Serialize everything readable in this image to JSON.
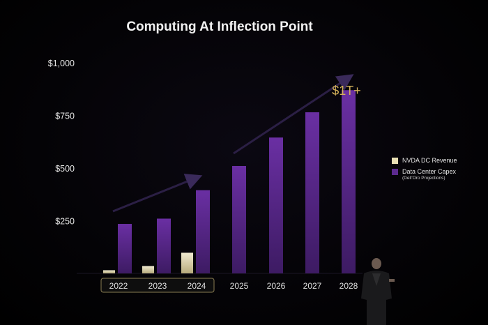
{
  "chart_data": {
    "type": "bar",
    "title": "Computing At Inflection Point",
    "categories": [
      "2022",
      "2023",
      "2024",
      "2025",
      "2026",
      "2027",
      "2028"
    ],
    "highlighted_categories": [
      "2022",
      "2023",
      "2024"
    ],
    "series": [
      {
        "name": "NVDA DC Revenue",
        "color": "#e8dfb4",
        "values": [
          15,
          35,
          98,
          null,
          null,
          null,
          null
        ]
      },
      {
        "name": "Data Center Capex",
        "color": "#5c2a8e",
        "values": [
          235,
          260,
          395,
          510,
          645,
          765,
          870
        ]
      }
    ],
    "legend_note": "(Dell'Oro Projections)",
    "yticks": [
      "$1,000",
      "$750",
      "$500",
      "$250"
    ],
    "ytick_values": [
      1000,
      750,
      500,
      250
    ],
    "ylim": [
      0,
      1000
    ],
    "annotation": "$1T+",
    "annotation_color": "#d4b25a",
    "grid": false,
    "legend_position": "right"
  }
}
